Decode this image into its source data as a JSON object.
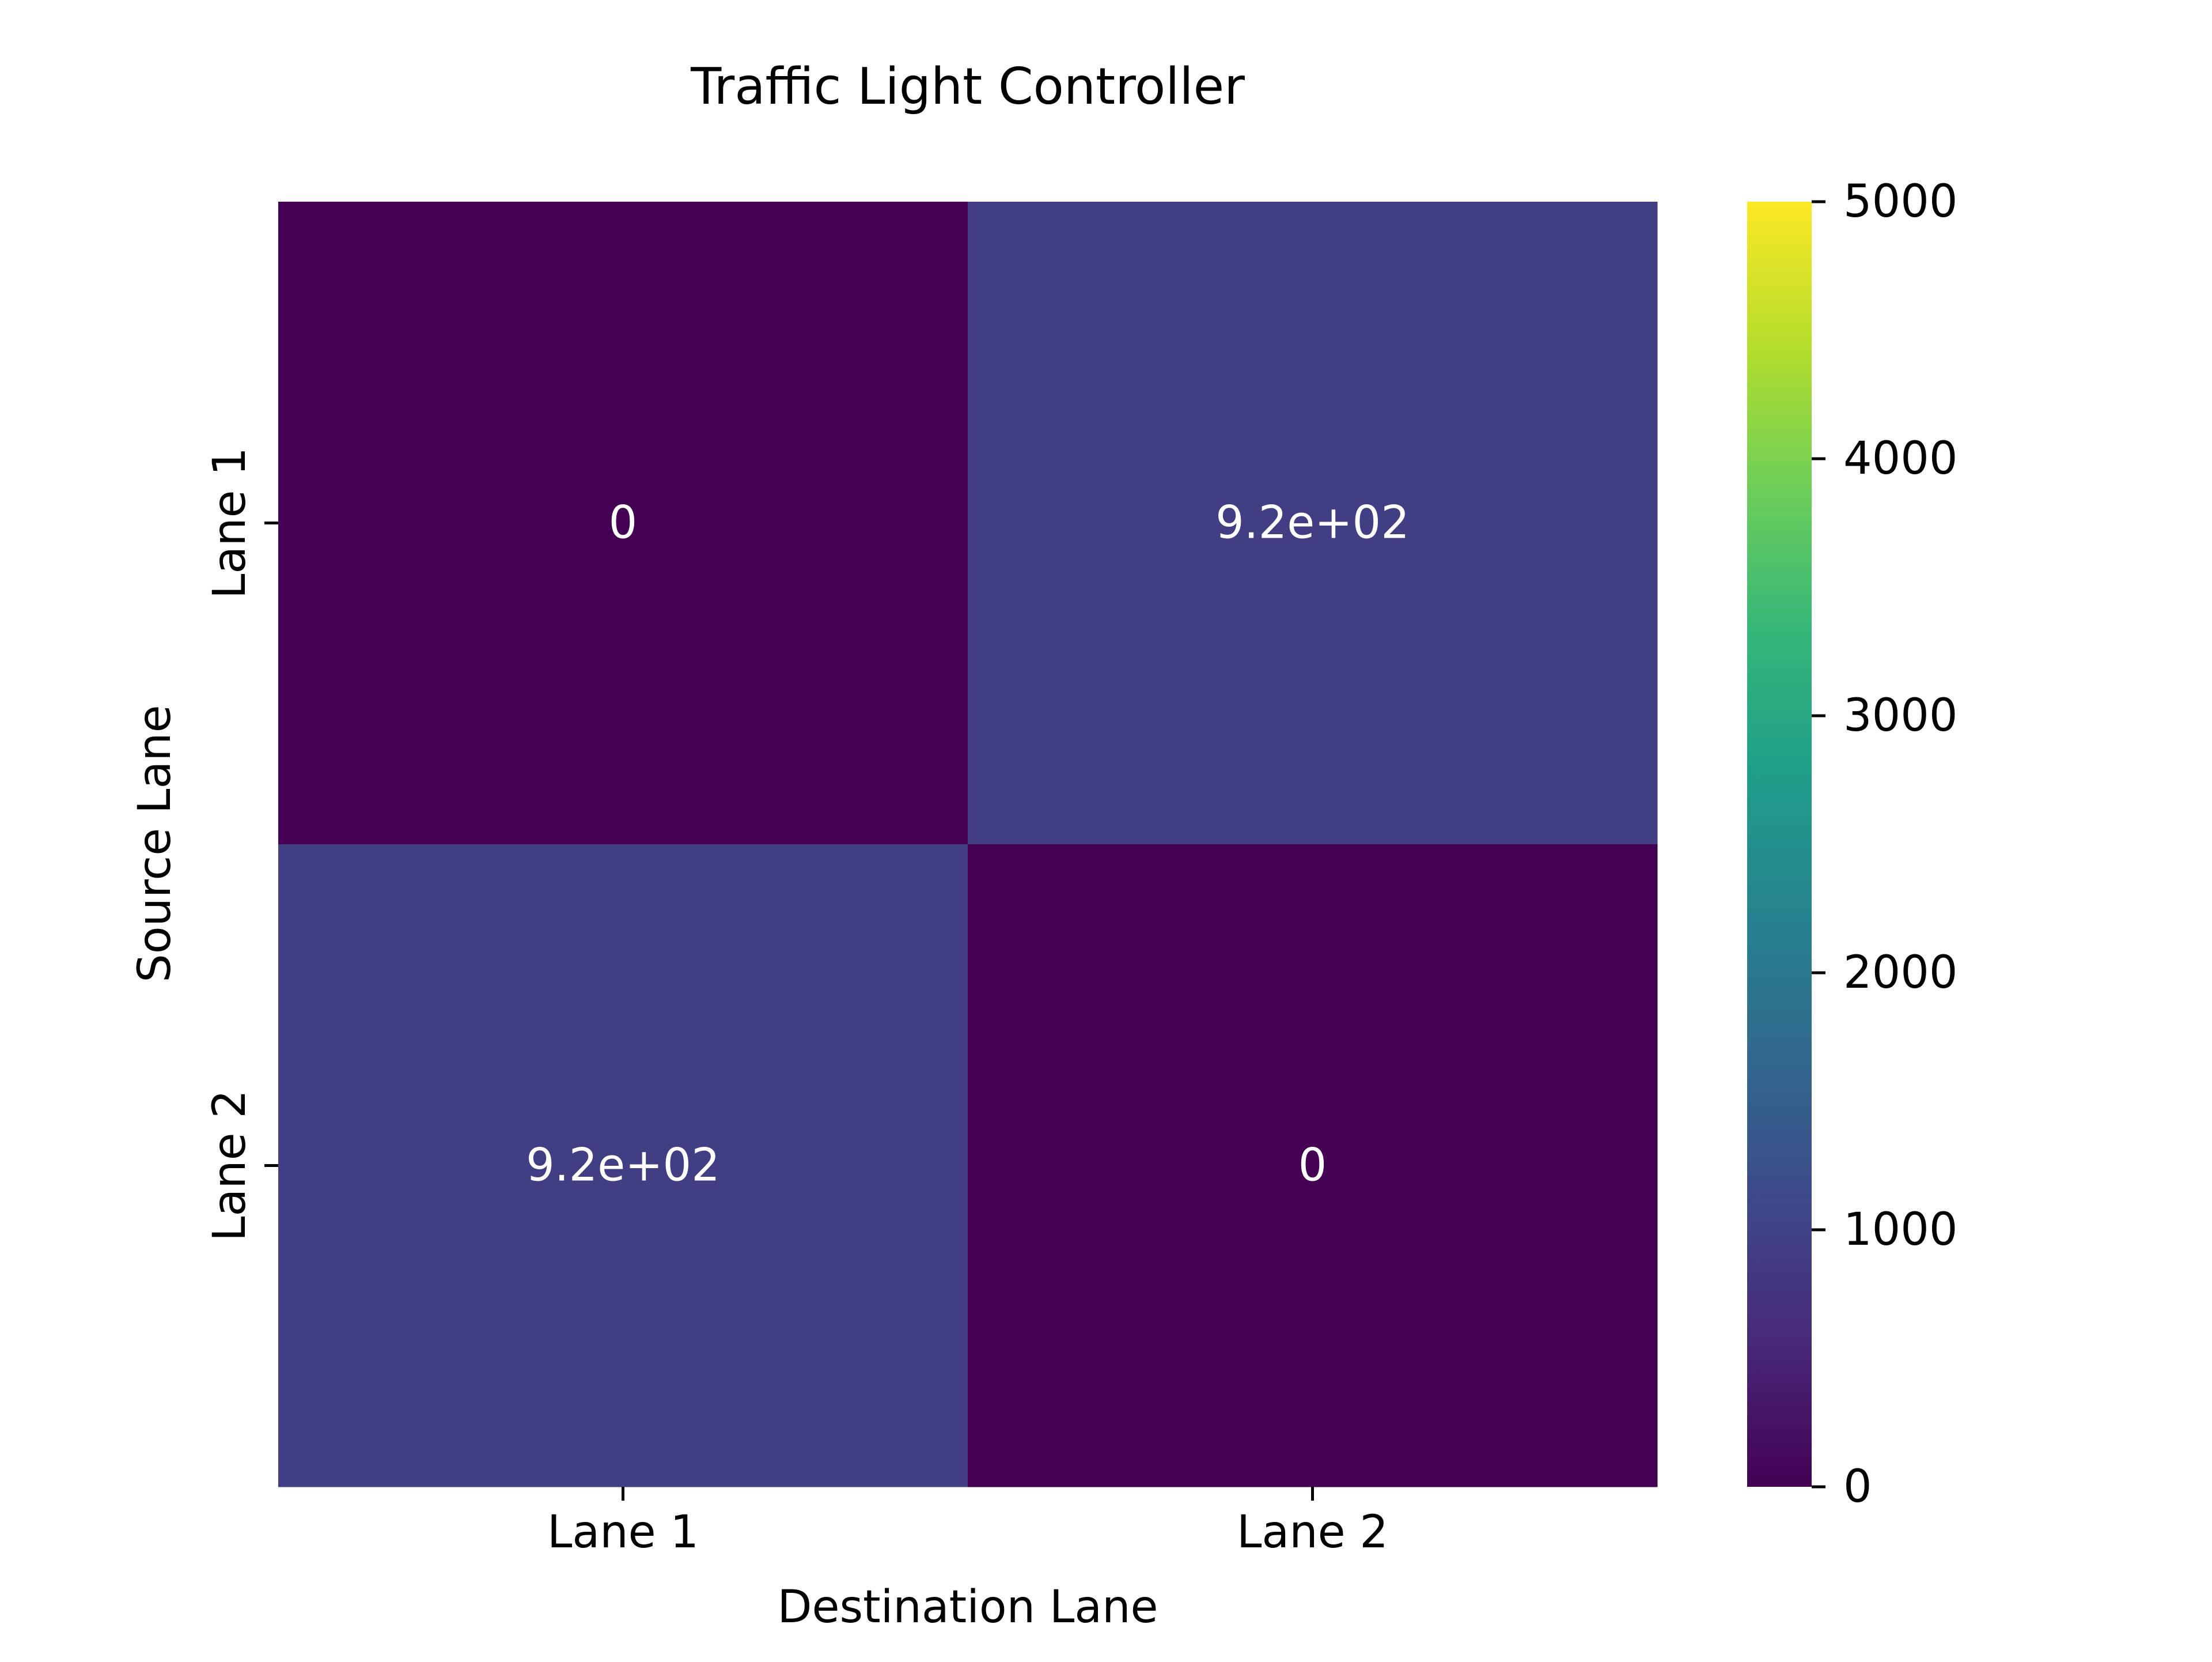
{
  "chart_data": {
    "type": "heatmap",
    "title": "Traffic Light Controller",
    "xlabel": "Destination Lane",
    "ylabel": "Source Lane",
    "x_categories": [
      "Lane 1",
      "Lane 2"
    ],
    "y_categories": [
      "Lane 1",
      "Lane 2"
    ],
    "values": [
      [
        0,
        920
      ],
      [
        920,
        0
      ]
    ],
    "annotations": [
      [
        "0",
        "9.2e+02"
      ],
      [
        "9.2e+02",
        "0"
      ]
    ],
    "colorbar": {
      "colormap": "viridis",
      "range": [
        0,
        5000
      ],
      "ticks": [
        0,
        1000,
        2000,
        3000,
        4000,
        5000
      ],
      "tick_labels": [
        "0",
        "1000",
        "2000",
        "3000",
        "4000",
        "5000"
      ]
    },
    "colors": {
      "annotation_text": "#ffffff",
      "viridis_stops": [
        "#440154",
        "#482878",
        "#3e4989",
        "#31688e",
        "#26828e",
        "#1f9e89",
        "#35b779",
        "#6ece58",
        "#b5de2b",
        "#fde725"
      ]
    }
  }
}
